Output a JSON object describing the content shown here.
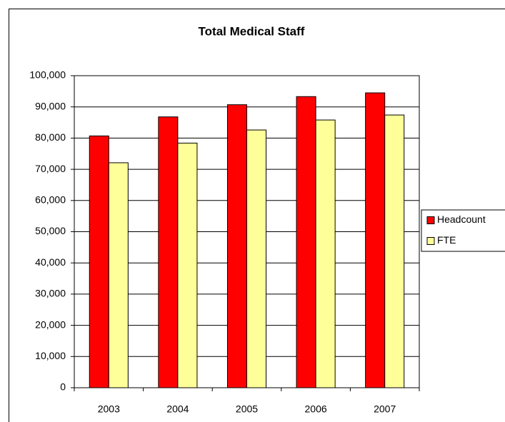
{
  "chart_data": {
    "type": "bar",
    "title": "Total Medical Staff",
    "categories": [
      "2003",
      "2004",
      "2005",
      "2006",
      "2007"
    ],
    "series": [
      {
        "name": "Headcount",
        "color": "#ff0000",
        "values": [
          80700,
          86800,
          90700,
          93300,
          94500
        ]
      },
      {
        "name": "FTE",
        "color": "#ffff99",
        "values": [
          72100,
          78400,
          82600,
          85800,
          87400
        ]
      }
    ],
    "ylim": [
      0,
      100000
    ],
    "yticks": [
      0,
      {
        "value": 10000,
        "label": "10,000"
      },
      {
        "value": 20000,
        "label": "20,000"
      },
      {
        "value": 30000,
        "label": "30,000"
      },
      {
        "value": 40000,
        "label": "40,000"
      },
      {
        "value": 50000,
        "label": "50,000"
      },
      {
        "value": 60000,
        "label": "60,000"
      },
      {
        "value": 70000,
        "label": "70,000"
      },
      {
        "value": 80000,
        "label": "80,000"
      },
      {
        "value": 90000,
        "label": "90,000"
      },
      {
        "value": 100000,
        "label": "100,000"
      }
    ],
    "grid": true,
    "legend": "right"
  }
}
